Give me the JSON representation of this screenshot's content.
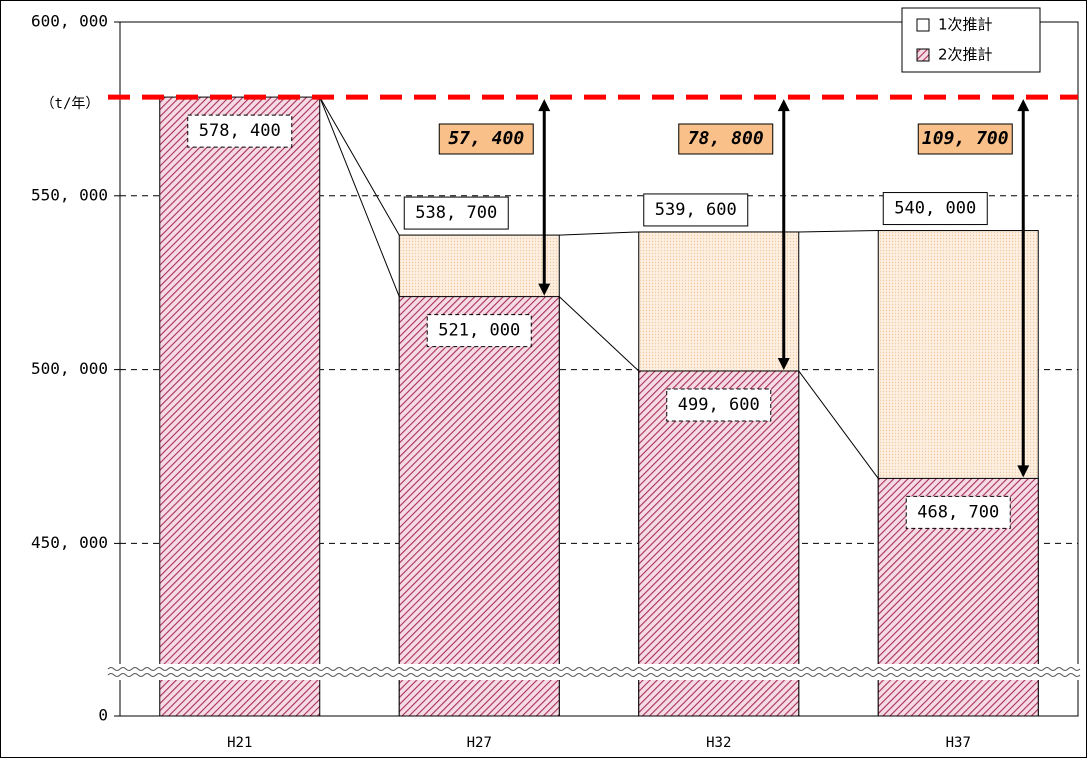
{
  "chart_data": {
    "type": "bar",
    "unit_label": "（t/年）",
    "categories": [
      "H21",
      "H27",
      "H32",
      "H37"
    ],
    "series": [
      {
        "name": "1次推計",
        "color": "#fbe6d0",
        "values": [
          null,
          538700,
          539600,
          540000
        ],
        "value_labels": [
          null,
          "538, 700",
          "539, 600",
          "540, 000"
        ]
      },
      {
        "name": "2次推計",
        "color": "#a8305c",
        "values": [
          578400,
          521000,
          499600,
          468700
        ],
        "value_labels": [
          "578, 400",
          "521, 000",
          "499, 600",
          "468, 700"
        ]
      }
    ],
    "differences": [
      null,
      57400,
      78800,
      109700
    ],
    "difference_labels": [
      null,
      "57, 400",
      "78, 800",
      "109, 700"
    ],
    "difference_color": "#f9c08a",
    "reference_line": {
      "value": 578400,
      "color": "#ff0000"
    },
    "ylim": [
      0,
      600000
    ],
    "ybreak": [
      0,
      413000
    ],
    "yticks": [
      {
        "value": 0,
        "label": "0"
      },
      {
        "value": 450000,
        "label": "450, 000"
      },
      {
        "value": 500000,
        "label": "500, 000"
      },
      {
        "value": 550000,
        "label": "550, 000"
      },
      {
        "value": 600000,
        "label": "600, 000"
      }
    ],
    "grid": true,
    "legend": "top-right"
  }
}
